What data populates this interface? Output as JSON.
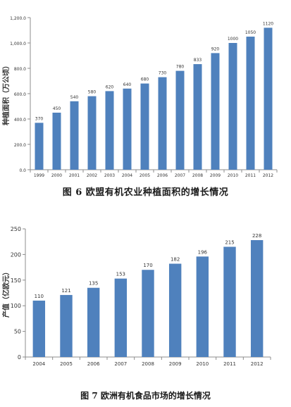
{
  "chart_data": [
    {
      "type": "bar",
      "title": "图 6   欧盟有机农业种植面积的增长情况",
      "ylabel": "种植面积（万公顷）",
      "xlabel": "",
      "categories": [
        "1999",
        "2000",
        "2001",
        "2002",
        "2003",
        "2004",
        "2005",
        "2006",
        "2007",
        "2008",
        "2009",
        "2010",
        "2011",
        "2012"
      ],
      "values": [
        370,
        450,
        540,
        580,
        620,
        640,
        680,
        730,
        780,
        833,
        920,
        1000,
        1050,
        1120
      ],
      "data_labels": [
        "370",
        "450",
        "540",
        "580",
        "620",
        "640",
        "680",
        "730",
        "780",
        "833",
        "920",
        "1000",
        "1050",
        "1120"
      ],
      "ylim": [
        0,
        1200
      ],
      "yticks": [
        0,
        200,
        400,
        600,
        800,
        1000,
        1200
      ],
      "ytick_labels": [
        "0.0",
        "200.0",
        "400.0",
        "600.0",
        "800.0",
        "1,000.0",
        "1,200.0"
      ],
      "bar_color": "#4f81bd",
      "grid": false
    },
    {
      "type": "bar",
      "title": "图 7  欧洲有机食品市场的增长情况",
      "ylabel": "产值（亿欧元）",
      "xlabel": "",
      "categories": [
        "2004",
        "2005",
        "2006",
        "2007",
        "2008",
        "2009",
        "2010",
        "2011",
        "2012"
      ],
      "values": [
        110,
        121,
        135,
        153,
        170,
        182,
        196,
        215,
        228
      ],
      "data_labels": [
        "110",
        "121",
        "135",
        "153",
        "170",
        "182",
        "196",
        "215",
        "228"
      ],
      "ylim": [
        0,
        250
      ],
      "yticks": [
        0,
        50,
        100,
        150,
        200,
        250
      ],
      "ytick_labels": [
        "0",
        "50",
        "100",
        "150",
        "200",
        "250"
      ],
      "bar_color": "#4f81bd",
      "grid": false
    }
  ]
}
